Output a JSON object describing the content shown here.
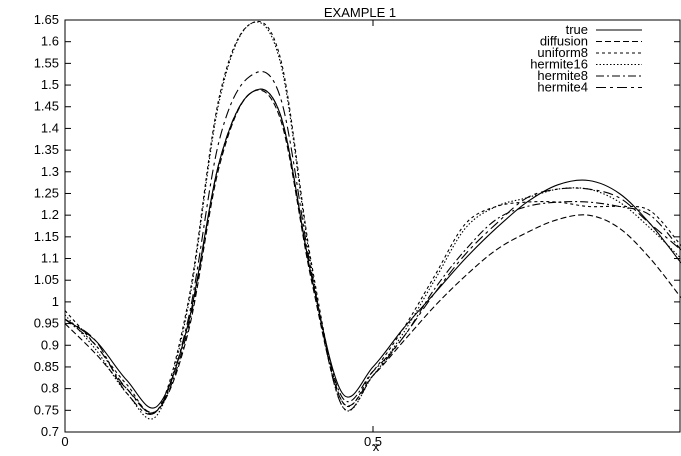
{
  "chart_data": {
    "type": "line",
    "title": "EXAMPLE 1",
    "xlabel": "x",
    "ylabel": "",
    "xlim": [
      0,
      1
    ],
    "ylim": [
      0.7,
      1.65
    ],
    "x_ticks": [
      "0",
      "0.5"
    ],
    "y_ticks": [
      "0.7",
      "0.75",
      "0.8",
      "0.85",
      "0.9",
      "0.95",
      "1",
      "1.05",
      "1.1",
      "1.15",
      "1.2",
      "1.25",
      "1.3",
      "1.35",
      "1.4",
      "1.45",
      "1.5",
      "1.55",
      "1.6",
      "1.65"
    ],
    "legend_position": "top-right",
    "grid": false,
    "x": [
      0,
      0.05,
      0.1,
      0.15,
      0.2,
      0.25,
      0.3,
      0.35,
      0.4,
      0.45,
      0.5,
      0.55,
      0.6,
      0.65,
      0.7,
      0.75,
      0.8,
      0.85,
      0.9,
      0.95,
      1
    ],
    "series": [
      {
        "name": "true",
        "dash": "",
        "values": [
          0.96,
          0.91,
          0.82,
          0.76,
          0.95,
          1.32,
          1.48,
          1.43,
          1.06,
          0.79,
          0.85,
          0.94,
          1.02,
          1.1,
          1.17,
          1.23,
          1.27,
          1.28,
          1.25,
          1.18,
          1.09
        ]
      },
      {
        "name": "diffusion",
        "dash": "6,3",
        "values": [
          0.95,
          0.88,
          0.8,
          0.75,
          0.93,
          1.31,
          1.48,
          1.42,
          1.05,
          0.77,
          0.83,
          0.91,
          0.99,
          1.06,
          1.12,
          1.16,
          1.19,
          1.2,
          1.17,
          1.1,
          1.01
        ]
      },
      {
        "name": "uniform8",
        "dash": "3,3",
        "values": [
          0.98,
          0.9,
          0.81,
          0.75,
          1.0,
          1.47,
          1.64,
          1.56,
          1.09,
          0.77,
          0.84,
          0.94,
          1.06,
          1.18,
          1.22,
          1.23,
          1.23,
          1.22,
          1.22,
          1.21,
          1.13
        ]
      },
      {
        "name": "hermite16",
        "dash": "1.5,2",
        "values": [
          0.97,
          0.89,
          0.79,
          0.74,
          0.99,
          1.46,
          1.64,
          1.55,
          1.08,
          0.76,
          0.83,
          0.93,
          1.05,
          1.17,
          1.22,
          1.24,
          1.26,
          1.26,
          1.23,
          1.17,
          1.1
        ]
      },
      {
        "name": "hermite8",
        "dash": "8,3,2,3",
        "values": [
          0.96,
          0.9,
          0.8,
          0.75,
          0.94,
          1.32,
          1.48,
          1.43,
          1.06,
          0.78,
          0.84,
          0.92,
          1.03,
          1.12,
          1.19,
          1.22,
          1.23,
          1.23,
          1.22,
          1.2,
          1.12
        ]
      },
      {
        "name": "hermite4",
        "dash": "10,4,3,4",
        "values": [
          0.96,
          0.91,
          0.79,
          0.75,
          0.96,
          1.37,
          1.52,
          1.47,
          1.07,
          0.76,
          0.83,
          0.92,
          1.02,
          1.11,
          1.18,
          1.24,
          1.26,
          1.26,
          1.24,
          1.18,
          1.12
        ]
      }
    ]
  }
}
